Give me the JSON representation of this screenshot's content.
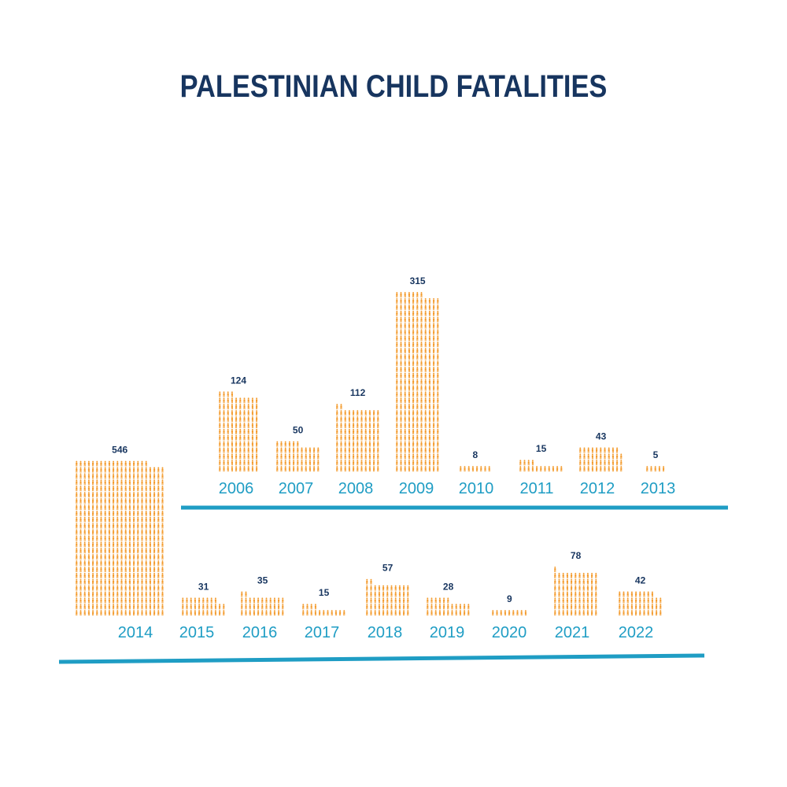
{
  "colors": {
    "title": "#17355f",
    "value_label": "#17355f",
    "year_label": "#1f9dc4",
    "icon": "#f39a2b",
    "axis_line": "#1f9dc4"
  },
  "icon_name": "child-figure-icon",
  "chart_data": {
    "type": "bar",
    "title": "PALESTINIAN CHILD FATALITIES",
    "xlabel": "",
    "ylabel": "",
    "grid": false,
    "legend": "none",
    "unit_per_icon": 1,
    "categories": [
      "2006",
      "2007",
      "2008",
      "2009",
      "2010",
      "2011",
      "2012",
      "2013",
      "2014",
      "2015",
      "2016",
      "2017",
      "2018",
      "2019",
      "2020",
      "2021",
      "2022"
    ],
    "values": [
      124,
      50,
      112,
      315,
      8,
      15,
      43,
      5,
      546,
      31,
      35,
      15,
      57,
      28,
      9,
      78,
      42
    ]
  }
}
